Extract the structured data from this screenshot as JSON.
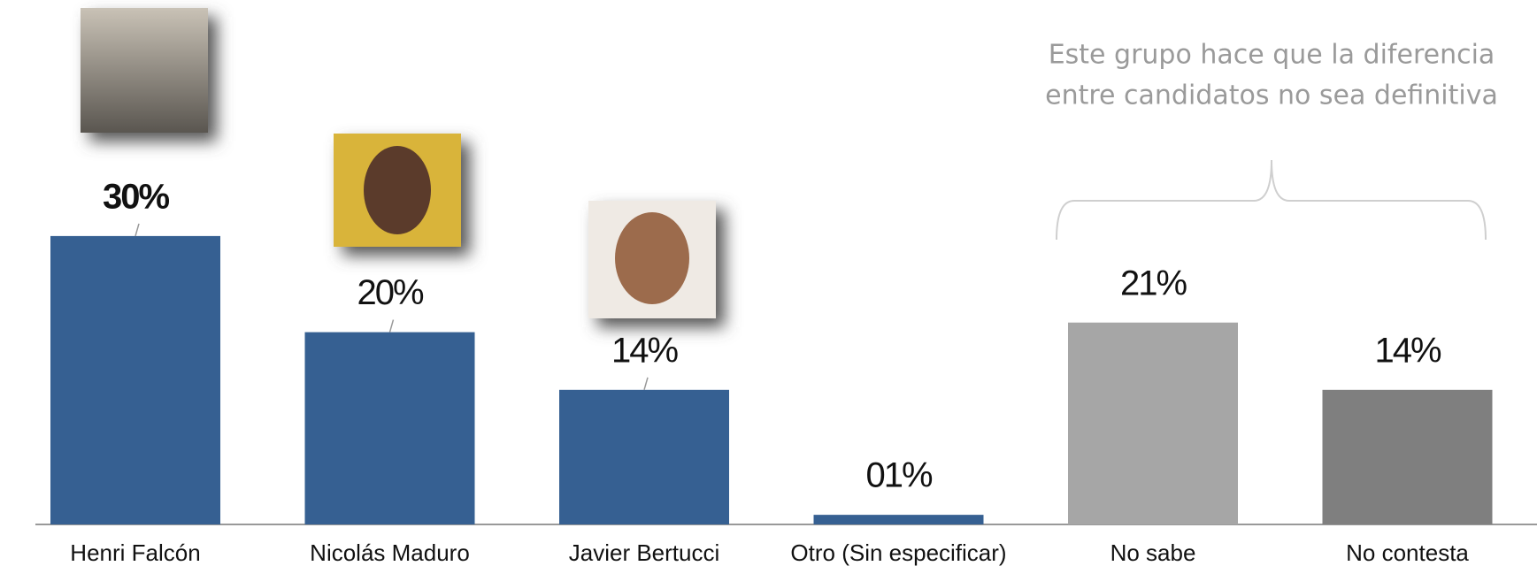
{
  "chart_data": {
    "type": "bar",
    "categories": [
      "Henri Falcón",
      "Nicolás Maduro",
      "Javier Bertucci",
      "Otro (Sin especificar)",
      "No sabe",
      "No contesta"
    ],
    "values": [
      30,
      20,
      14,
      1,
      21,
      14
    ],
    "value_labels": [
      "30%",
      "20%",
      "14%",
      "01%",
      "21%",
      "14%"
    ],
    "colors": [
      "#366092",
      "#366092",
      "#366092",
      "#366092",
      "#a6a6a6",
      "#7f7f7f"
    ],
    "annotation": [
      "Este grupo hace que la diferencia",
      "entre candidatos no sea definitiva"
    ]
  }
}
